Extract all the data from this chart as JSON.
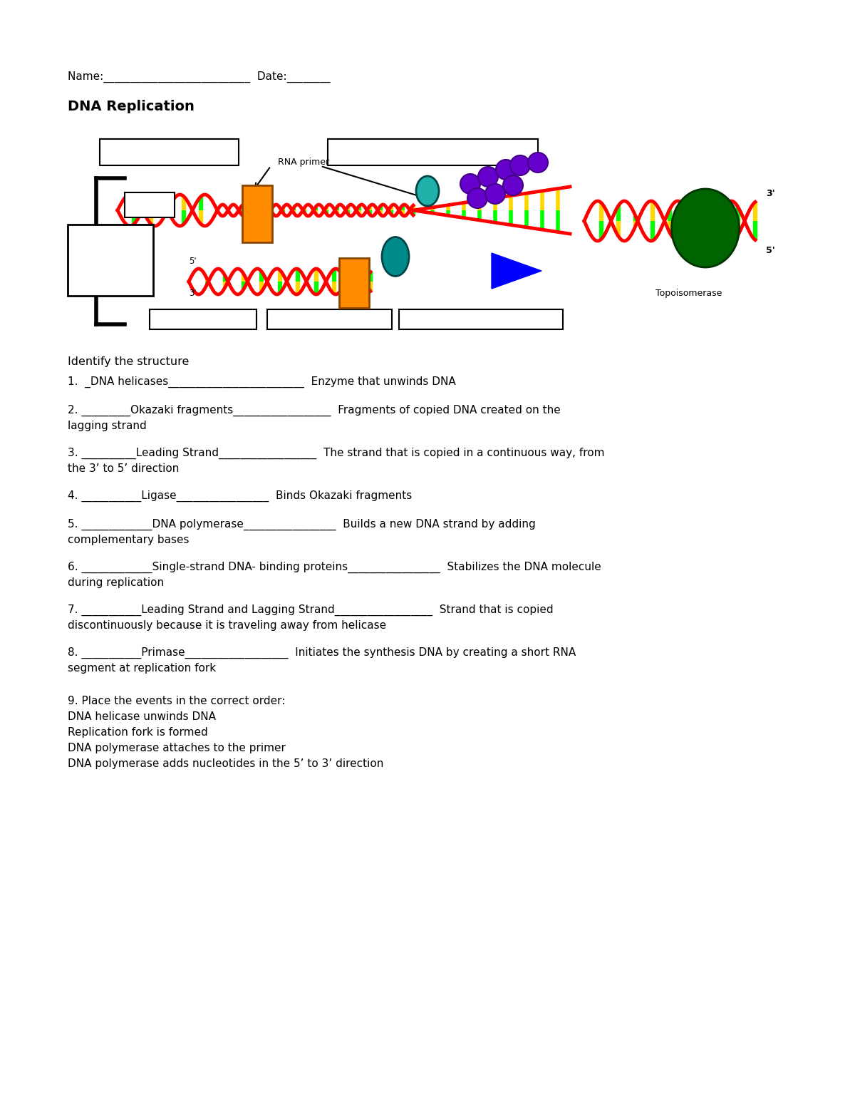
{
  "title": "DNA Replication",
  "name_line": "Name:___________________________  Date:________",
  "identify_header": "Identify the structure",
  "questions": [
    {
      "line1": "1.  _DNA helicases_________________________  Enzyme that unwinds DNA",
      "line2": null
    },
    {
      "line1": "2. _________Okazaki fragments__________________  Fragments of copied DNA created on the",
      "line2": "lagging strand"
    },
    {
      "line1": "3. __________Leading Strand__________________  The strand that is copied in a continuous way, from",
      "line2": "the 3’ to 5’ direction"
    },
    {
      "line1": "4. ___________Ligase_________________  Binds Okazaki fragments",
      "line2": null
    },
    {
      "line1": "5. _____________DNA polymerase_________________  Builds a new DNA strand by adding",
      "line2": "complementary bases"
    },
    {
      "line1": "6. _____________Single-strand DNA- binding proteins_________________  Stabilizes the DNA molecule",
      "line2": "during replication"
    },
    {
      "line1": "7. ___________Leading Strand and Lagging Strand__________________  Strand that is copied",
      "line2": "discontinuously because it is traveling away from helicase"
    },
    {
      "line1": "8. ___________Primase___________________  Initiates the synthesis DNA by creating a short RNA",
      "line2": "segment at replication fork"
    }
  ],
  "q9_header": "9. Place the events in the correct order:",
  "q9_items": [
    "DNA helicase unwinds DNA",
    "Replication fork is formed",
    "DNA polymerase attaches to the primer",
    "DNA polymerase adds nucleotides in the 5’ to 3’ direction"
  ],
  "bg_color": "#ffffff",
  "text_color": "#000000"
}
